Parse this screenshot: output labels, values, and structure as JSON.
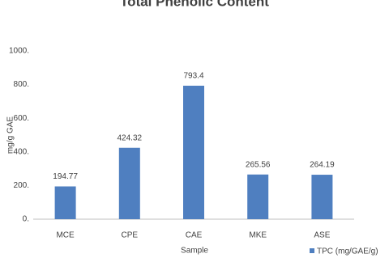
{
  "chart_data": {
    "type": "bar",
    "title": "Total Phenolic Content",
    "x_label": "Sample",
    "y_label": "mg/g GAE",
    "categories": [
      "MCE",
      "CPE",
      "CAE",
      "MKE",
      "ASE"
    ],
    "series": [
      {
        "name": "TPC (mg/GAE/g)",
        "color": "#4f7fc0",
        "values": [
          194.77,
          424.32,
          793.4,
          265.56,
          264.19
        ]
      }
    ],
    "ylim": [
      0,
      1000
    ],
    "yticks": [
      {
        "value": 0,
        "label": "0."
      },
      {
        "value": 200,
        "label": "200."
      },
      {
        "value": 400,
        "label": "400."
      },
      {
        "value": 600,
        "label": "600."
      },
      {
        "value": 800,
        "label": "800."
      },
      {
        "value": 1000,
        "label": "1000."
      }
    ],
    "grid": false,
    "legend_position": "bottom-right"
  }
}
